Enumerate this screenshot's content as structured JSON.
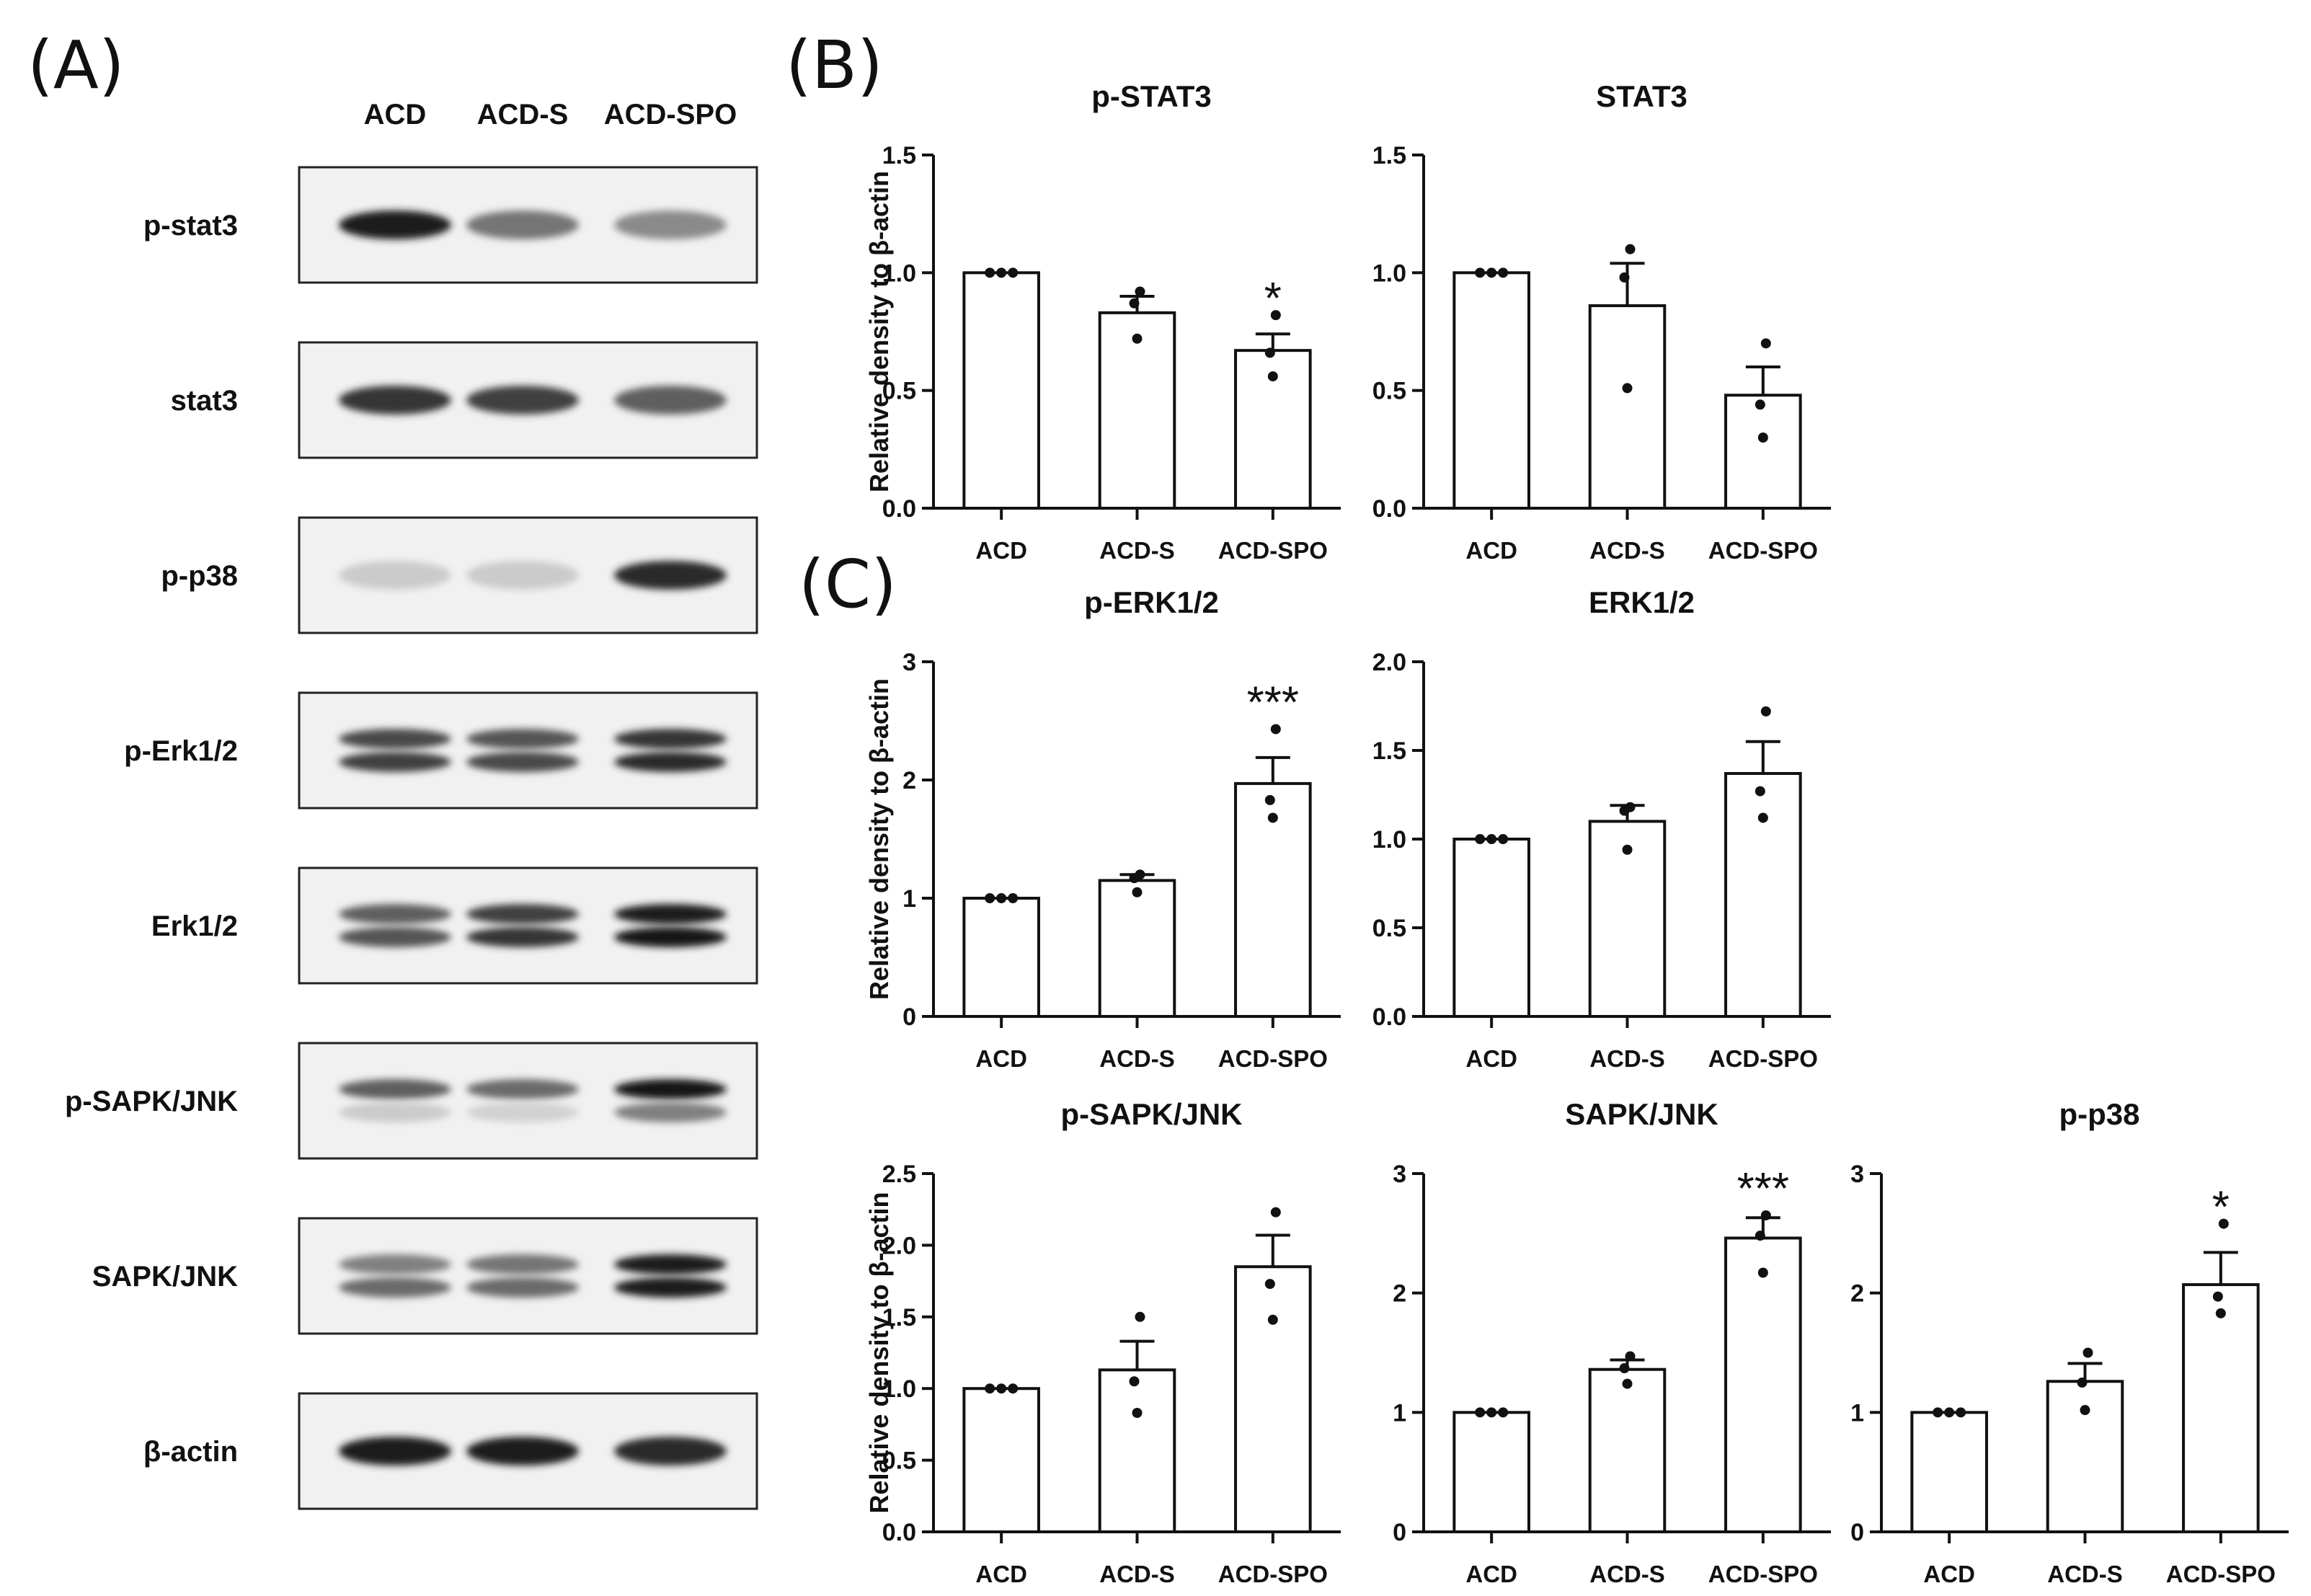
{
  "panels": {
    "a": "(A)",
    "b": "(B)",
    "c": "(C)"
  },
  "blot": {
    "lanes": [
      "ACD",
      "ACD-S",
      "ACD-SPO"
    ],
    "rows": [
      {
        "label": "p-stat3",
        "bands": [
          [
            0.95
          ],
          [
            0.55
          ],
          [
            0.45
          ]
        ],
        "double": false
      },
      {
        "label": "stat3",
        "bands": [
          [
            0.85
          ],
          [
            0.8
          ],
          [
            0.65
          ]
        ],
        "double": false
      },
      {
        "label": "p-p38",
        "bands": [
          [
            0.15
          ],
          [
            0.15
          ],
          [
            0.9
          ]
        ],
        "double": false
      },
      {
        "label": "p-Erk1/2",
        "bands": [
          [
            0.75,
            0.8
          ],
          [
            0.7,
            0.75
          ],
          [
            0.85,
            0.9
          ]
        ],
        "double": true
      },
      {
        "label": "Erk1/2",
        "bands": [
          [
            0.65,
            0.7
          ],
          [
            0.8,
            0.85
          ],
          [
            0.95,
            1.0
          ]
        ],
        "double": true
      },
      {
        "label": "p-SAPK/JNK",
        "bands": [
          [
            0.65,
            0.15
          ],
          [
            0.6,
            0.12
          ],
          [
            1.0,
            0.5
          ]
        ],
        "double": true
      },
      {
        "label": "SAPK/JNK",
        "bands": [
          [
            0.5,
            0.6
          ],
          [
            0.55,
            0.6
          ],
          [
            0.95,
            0.95
          ]
        ],
        "double": true
      },
      {
        "label": "β-actin",
        "bands": [
          [
            0.95
          ],
          [
            0.95
          ],
          [
            0.9
          ]
        ],
        "double": false
      }
    ]
  },
  "chart_data": [
    {
      "type": "bar",
      "title": "p-STAT3",
      "ylabel": "Relative density to β-actin",
      "categories": [
        "ACD",
        "ACD-S",
        "ACD-SPO"
      ],
      "values": [
        1.0,
        0.83,
        0.67
      ],
      "errors": [
        0,
        0.07,
        0.07
      ],
      "points": [
        [
          1.0,
          1.0,
          1.0
        ],
        [
          0.92,
          0.87,
          0.72
        ],
        [
          0.82,
          0.66,
          0.56
        ]
      ],
      "significance": [
        "",
        "",
        "*"
      ],
      "ylim": [
        0,
        1.5
      ],
      "yticks": [
        "0.0",
        "0.5",
        "1.0",
        "1.5"
      ]
    },
    {
      "type": "bar",
      "title": "STAT3",
      "ylabel": "",
      "categories": [
        "ACD",
        "ACD-S",
        "ACD-SPO"
      ],
      "values": [
        1.0,
        0.86,
        0.48
      ],
      "errors": [
        0,
        0.18,
        0.12
      ],
      "points": [
        [
          1.0,
          1.0,
          1.0
        ],
        [
          1.1,
          0.98,
          0.51
        ],
        [
          0.7,
          0.44,
          0.3
        ]
      ],
      "significance": [
        "",
        "",
        ""
      ],
      "ylim": [
        0,
        1.5
      ],
      "yticks": [
        "0.0",
        "0.5",
        "1.0",
        "1.5"
      ]
    },
    {
      "type": "bar",
      "title": "p-ERK1/2",
      "ylabel": "Relative density to β-actin",
      "categories": [
        "ACD",
        "ACD-S",
        "ACD-SPO"
      ],
      "values": [
        1.0,
        1.15,
        1.97
      ],
      "errors": [
        0,
        0.05,
        0.22
      ],
      "points": [
        [
          1.0,
          1.0,
          1.0
        ],
        [
          1.2,
          1.17,
          1.05
        ],
        [
          2.43,
          1.83,
          1.68
        ]
      ],
      "significance": [
        "",
        "",
        "***"
      ],
      "ylim": [
        0,
        3
      ],
      "yticks": [
        "0",
        "1",
        "2",
        "3"
      ]
    },
    {
      "type": "bar",
      "title": "ERK1/2",
      "ylabel": "",
      "categories": [
        "ACD",
        "ACD-S",
        "ACD-SPO"
      ],
      "values": [
        1.0,
        1.1,
        1.37
      ],
      "errors": [
        0,
        0.09,
        0.18
      ],
      "points": [
        [
          1.0,
          1.0,
          1.0
        ],
        [
          1.18,
          1.16,
          0.94
        ],
        [
          1.72,
          1.27,
          1.12
        ]
      ],
      "significance": [
        "",
        "",
        ""
      ],
      "ylim": [
        0,
        2.0
      ],
      "yticks": [
        "0.0",
        "0.5",
        "1.0",
        "1.5",
        "2.0"
      ]
    },
    {
      "type": "bar",
      "title": "p-SAPK/JNK",
      "ylabel": "Relative density to β-actin",
      "categories": [
        "ACD",
        "ACD-S",
        "ACD-SPO"
      ],
      "values": [
        1.0,
        1.13,
        1.85
      ],
      "errors": [
        0,
        0.2,
        0.22
      ],
      "points": [
        [
          1.0,
          1.0,
          1.0
        ],
        [
          1.5,
          1.05,
          0.83
        ],
        [
          2.23,
          1.73,
          1.48
        ]
      ],
      "significance": [
        "",
        "",
        ""
      ],
      "ylim": [
        0,
        2.5
      ],
      "yticks": [
        "0.0",
        "0.5",
        "1.0",
        "1.5",
        "2.0",
        "2.5"
      ]
    },
    {
      "type": "bar",
      "title": "SAPK/JNK",
      "ylabel": "",
      "categories": [
        "ACD",
        "ACD-S",
        "ACD-SPO"
      ],
      "values": [
        1.0,
        1.36,
        2.46
      ],
      "errors": [
        0,
        0.08,
        0.17
      ],
      "points": [
        [
          1.0,
          1.0,
          1.0
        ],
        [
          1.47,
          1.37,
          1.24
        ],
        [
          2.65,
          2.48,
          2.17
        ]
      ],
      "significance": [
        "",
        "",
        "***"
      ],
      "ylim": [
        0,
        3
      ],
      "yticks": [
        "0",
        "1",
        "2",
        "3"
      ]
    },
    {
      "type": "bar",
      "title": "p-p38",
      "ylabel": "",
      "categories": [
        "ACD",
        "ACD-S",
        "ACD-SPO"
      ],
      "values": [
        1.0,
        1.26,
        2.07
      ],
      "errors": [
        0,
        0.15,
        0.27
      ],
      "points": [
        [
          1.0,
          1.0,
          1.0
        ],
        [
          1.5,
          1.25,
          1.02
        ],
        [
          2.58,
          1.97,
          1.83
        ]
      ],
      "significance": [
        "",
        "",
        "*"
      ],
      "ylim": [
        0,
        3
      ],
      "yticks": [
        "0",
        "1",
        "2",
        "3"
      ]
    }
  ]
}
